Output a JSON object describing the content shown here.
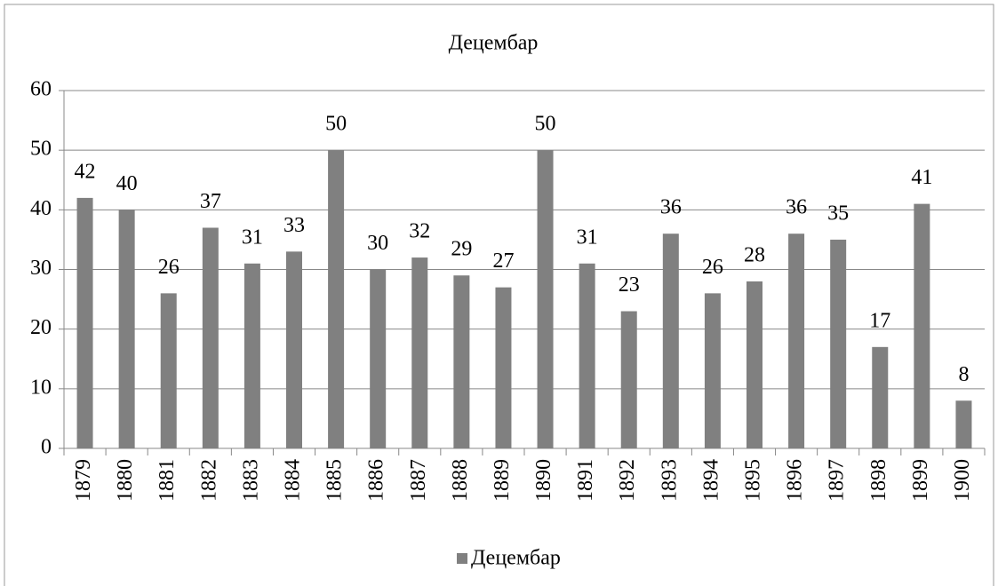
{
  "chart_data": {
    "type": "bar",
    "title": "Децембар",
    "categories": [
      "1879",
      "1880",
      "1881",
      "1882",
      "1883",
      "1884",
      "1885",
      "1886",
      "1887",
      "1888",
      "1889",
      "1890",
      "1891",
      "1892",
      "1893",
      "1894",
      "1895",
      "1896",
      "1897",
      "1898",
      "1899",
      "1900"
    ],
    "series": [
      {
        "name": "Децембар",
        "color": "#808080",
        "values": [
          42,
          40,
          26,
          37,
          31,
          33,
          50,
          30,
          32,
          29,
          27,
          50,
          31,
          23,
          36,
          26,
          28,
          36,
          35,
          17,
          41,
          8
        ]
      }
    ],
    "ylim": [
      0,
      60
    ],
    "yticks": [
      0,
      10,
      20,
      30,
      40,
      50,
      60
    ],
    "grid": true,
    "legend": "bottom"
  }
}
